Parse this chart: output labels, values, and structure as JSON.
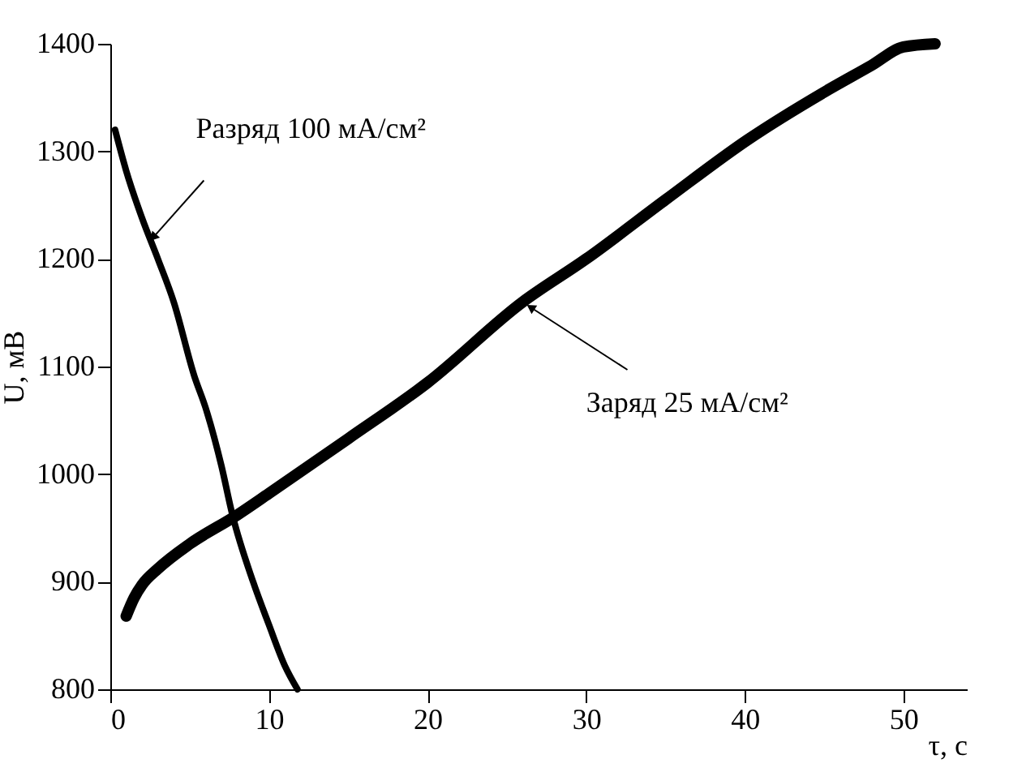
{
  "chart_data": {
    "type": "line",
    "xlabel": "τ, с",
    "ylabel": "U, мВ",
    "xlim": [
      0,
      54
    ],
    "xticks": [
      0,
      10,
      20,
      30,
      40,
      50
    ],
    "ylim": [
      800,
      1400
    ],
    "yticks": [
      800,
      900,
      1000,
      1100,
      1200,
      1300,
      1400
    ],
    "grid": false,
    "marker": "none",
    "line_style": "solid",
    "series": [
      {
        "color": "#000000",
        "x": [
          0.3,
          1,
          2,
          3,
          4,
          5.3,
          6,
          7,
          7.7,
          9,
          10,
          11,
          11.8
        ],
        "values": [
          1320,
          1282,
          1238,
          1200,
          1160,
          1091,
          1062,
          1008,
          962,
          900,
          860,
          822,
          800
        ]
      },
      {
        "color": "#000000",
        "x": [
          1,
          1.5,
          2,
          3,
          5,
          8,
          10,
          15,
          20,
          26,
          30,
          35,
          40.2,
          45,
          48,
          50,
          52
        ],
        "values": [
          868,
          885,
          897,
          912,
          935,
          962,
          982,
          1033,
          1085,
          1160,
          1200,
          1255,
          1311,
          1355,
          1380,
          1397,
          1400
        ]
      }
    ],
    "annotations": [
      {
        "text": "Разряд 100 мА/см²",
        "x": 2.7,
        "y": 1220
      },
      {
        "text": "Заряд 25 мА/см²",
        "x": 26.5,
        "y": 1155
      }
    ]
  }
}
